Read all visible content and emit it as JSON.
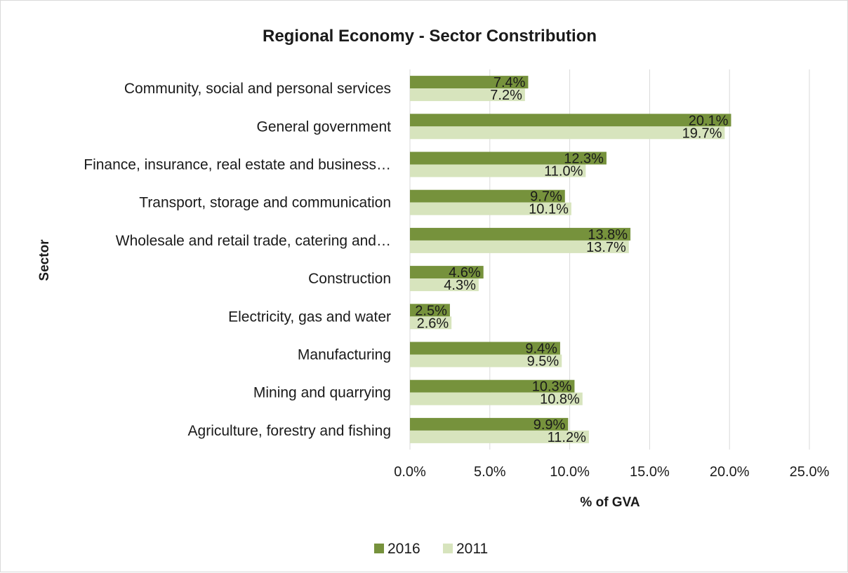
{
  "chart_data": {
    "type": "bar",
    "orientation": "horizontal",
    "title": "Regional Economy - Sector Constribution",
    "xlabel": "% of GVA",
    "ylabel": "Sector",
    "xlim": [
      0,
      25
    ],
    "x_ticks": [
      "0.0%",
      "5.0%",
      "10.0%",
      "15.0%",
      "20.0%",
      "25.0%"
    ],
    "grid": true,
    "legend_position": "bottom",
    "categories": [
      "Community, social and personal services",
      "General government",
      "Finance, insurance, real estate and business…",
      "Transport, storage and communication",
      "Wholesale and retail trade, catering and…",
      "Construction",
      "Electricity, gas and water",
      "Manufacturing",
      "Mining and quarrying",
      "Agriculture, forestry and fishing"
    ],
    "series": [
      {
        "name": "2016",
        "color": "#76923c",
        "values": [
          7.4,
          20.1,
          12.3,
          9.7,
          13.8,
          4.6,
          2.5,
          9.4,
          10.3,
          9.9
        ],
        "labels": [
          "7.4%",
          "20.1%",
          "12.3%",
          "9.7%",
          "13.8%",
          "4.6%",
          "2.5%",
          "9.4%",
          "10.3%",
          "9.9%"
        ]
      },
      {
        "name": "2011",
        "color": "#d7e4bd",
        "values": [
          7.2,
          19.7,
          11.0,
          10.1,
          13.7,
          4.3,
          2.6,
          9.5,
          10.8,
          11.2
        ],
        "labels": [
          "7.2%",
          "19.7%",
          "11.0%",
          "10.1%",
          "13.7%",
          "4.3%",
          "2.6%",
          "9.5%",
          "10.8%",
          "11.2%"
        ]
      }
    ]
  }
}
